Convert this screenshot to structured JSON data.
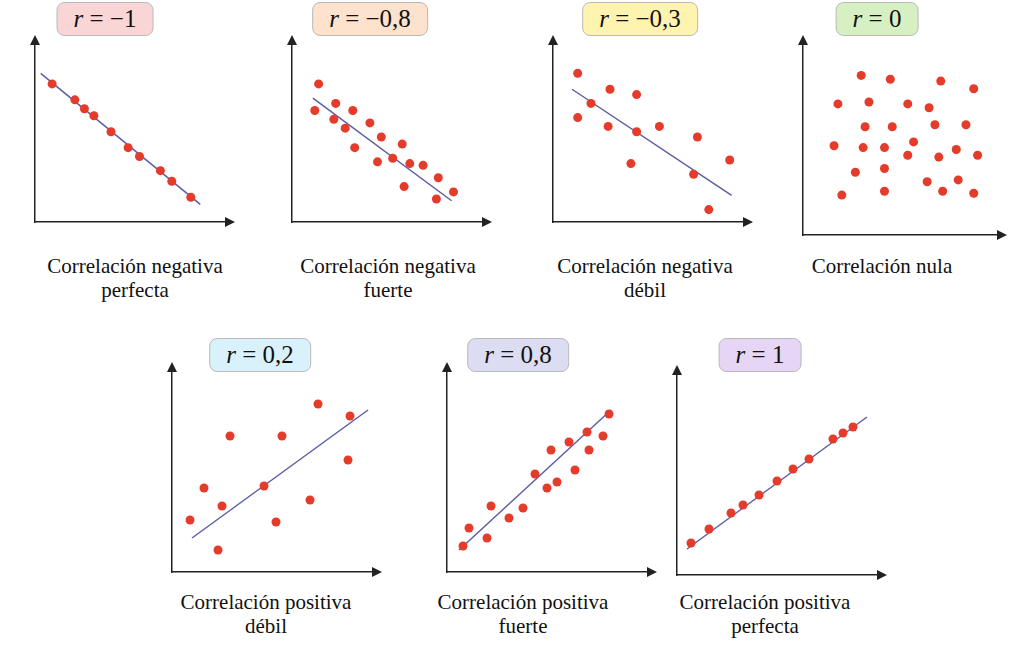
{
  "chart_data": [
    {
      "type": "scatter",
      "title": "r = −1",
      "xlabel": [
        "Correlación negativa",
        "perfecta"
      ],
      "xlim": [
        0,
        10
      ],
      "ylim": [
        0,
        10
      ],
      "tick_labels": false,
      "grid": false,
      "series": [
        {
          "type": "scatter",
          "marker": "circle",
          "color": "#e53b2b",
          "x": [
            0.9,
            2.1,
            2.6,
            3.1,
            4.0,
            4.9,
            5.5,
            6.6,
            7.2,
            8.2
          ],
          "values": [
            7.8,
            6.9,
            6.4,
            6.0,
            5.1,
            4.2,
            3.7,
            2.9,
            2.3,
            1.4
          ]
        },
        {
          "type": "line",
          "line_style": "solid",
          "color": "#5b5ea6",
          "x": [
            0.3,
            8.7
          ],
          "values": [
            8.4,
            1.0
          ]
        }
      ]
    },
    {
      "type": "scatter",
      "title": "r = −0,8",
      "xlabel": [
        "Correlación negativa",
        "fuerte"
      ],
      "xlim": [
        0,
        10
      ],
      "ylim": [
        0,
        10
      ],
      "tick_labels": false,
      "grid": false,
      "series": [
        {
          "type": "scatter",
          "marker": "circle",
          "color": "#e53b2b",
          "x": [
            1.4,
            1.2,
            2.3,
            2.2,
            2.8,
            3.2,
            3.3,
            4.1,
            4.5,
            4.7,
            5.3,
            5.8,
            5.9,
            6.2,
            6.9,
            7.6,
            7.7,
            8.5
          ],
          "values": [
            7.8,
            6.3,
            6.7,
            5.8,
            5.3,
            6.3,
            4.2,
            5.6,
            3.4,
            4.8,
            3.6,
            4.4,
            2.0,
            3.3,
            3.2,
            1.3,
            2.5,
            1.7
          ]
        },
        {
          "type": "line",
          "line_style": "solid",
          "color": "#5b5ea6",
          "x": [
            1.1,
            8.4
          ],
          "values": [
            7.0,
            1.2
          ]
        }
      ]
    },
    {
      "type": "scatter",
      "title": "r = −0,3",
      "xlabel": [
        "Correlación negativa",
        "débil"
      ],
      "xlim": [
        0,
        10
      ],
      "ylim": [
        0,
        10
      ],
      "tick_labels": false,
      "grid": false,
      "series": [
        {
          "type": "scatter",
          "marker": "circle",
          "color": "#e53b2b",
          "x": [
            1.3,
            1.3,
            2.0,
            3.0,
            2.9,
            4.4,
            4.4,
            4.1,
            5.6,
            7.6,
            7.4,
            8.2,
            9.3
          ],
          "values": [
            8.4,
            5.9,
            6.7,
            7.5,
            5.4,
            7.2,
            5.1,
            3.3,
            5.4,
            4.8,
            2.7,
            0.7,
            3.5
          ]
        },
        {
          "type": "line",
          "line_style": "solid",
          "color": "#5b5ea6",
          "x": [
            1.0,
            9.4
          ],
          "values": [
            7.5,
            1.5
          ]
        }
      ]
    },
    {
      "type": "scatter",
      "title": "r = 0",
      "xlabel": [
        "Correlación nula"
      ],
      "xlim": [
        0,
        10
      ],
      "ylim": [
        0,
        10
      ],
      "tick_labels": false,
      "grid": false,
      "series": [
        {
          "type": "scatter",
          "marker": "circle",
          "color": "#e53b2b",
          "x": [
            3.0,
            4.5,
            7.1,
            8.8,
            1.8,
            3.4,
            5.4,
            6.5,
            4.6,
            6.8,
            8.4,
            3.2,
            5.7,
            1.6,
            3.1,
            4.2,
            5.4,
            7.0,
            7.9,
            9.0,
            2.7,
            4.2,
            6.4,
            7.2,
            8.0,
            2.0,
            4.2,
            8.8
          ],
          "values": [
            8.4,
            8.2,
            8.1,
            7.7,
            6.9,
            7.0,
            6.9,
            6.7,
            5.7,
            5.8,
            5.8,
            5.7,
            4.9,
            4.7,
            4.6,
            4.6,
            4.2,
            4.1,
            4.5,
            4.2,
            3.3,
            3.5,
            2.8,
            2.3,
            2.9,
            2.1,
            2.3,
            2.2
          ]
        }
      ]
    },
    {
      "type": "scatter",
      "title": "r = 0,2",
      "xlabel": [
        "Correlación positiva",
        "débil"
      ],
      "xlim": [
        0,
        10
      ],
      "ylim": [
        0,
        10
      ],
      "tick_labels": false,
      "grid": false,
      "series": [
        {
          "type": "scatter",
          "marker": "circle",
          "color": "#e53b2b",
          "x": [
            0.9,
            1.6,
            2.3,
            2.5,
            2.9,
            4.6,
            5.2,
            5.5,
            6.9,
            7.3,
            8.8,
            8.9
          ],
          "values": [
            2.6,
            4.2,
            1.1,
            3.3,
            6.8,
            4.3,
            2.5,
            6.8,
            3.6,
            8.4,
            5.6,
            7.8
          ]
        },
        {
          "type": "line",
          "line_style": "solid",
          "color": "#5b5ea6",
          "x": [
            1.0,
            9.8
          ],
          "values": [
            1.7,
            8.1
          ]
        }
      ]
    },
    {
      "type": "scatter",
      "title": "r = 0,8",
      "xlabel": [
        "Correlación positiva",
        "fuerte"
      ],
      "xlim": [
        0,
        10
      ],
      "ylim": [
        0,
        10
      ],
      "tick_labels": false,
      "grid": false,
      "series": [
        {
          "type": "scatter",
          "marker": "circle",
          "color": "#e53b2b",
          "x": [
            0.8,
            1.1,
            2.0,
            2.2,
            3.1,
            3.8,
            4.4,
            5.0,
            5.2,
            5.5,
            6.1,
            6.4,
            7.0,
            7.1,
            7.8,
            8.1
          ],
          "values": [
            1.3,
            2.2,
            1.7,
            3.3,
            2.7,
            3.2,
            4.9,
            4.2,
            6.1,
            4.5,
            6.5,
            5.1,
            7.0,
            6.1,
            6.8,
            7.9
          ]
        },
        {
          "type": "line",
          "line_style": "solid",
          "color": "#5b5ea6",
          "x": [
            0.6,
            8.2
          ],
          "values": [
            1.1,
            8.1
          ]
        }
      ]
    },
    {
      "type": "scatter",
      "title": "r = 1",
      "xlabel": [
        "Correlación positiva",
        "perfecta"
      ],
      "xlim": [
        0,
        10
      ],
      "ylim": [
        0,
        10
      ],
      "tick_labels": false,
      "grid": false,
      "series": [
        {
          "type": "scatter",
          "marker": "circle",
          "color": "#e53b2b",
          "x": [
            0.7,
            1.6,
            2.7,
            3.3,
            4.1,
            5.0,
            5.8,
            6.6,
            7.8,
            8.3,
            8.8
          ],
          "values": [
            1.6,
            2.3,
            3.1,
            3.5,
            4.0,
            4.7,
            5.3,
            5.8,
            6.8,
            7.1,
            7.4
          ]
        },
        {
          "type": "line",
          "line_style": "solid",
          "color": "#5b5ea6",
          "x": [
            0.5,
            9.5
          ],
          "values": [
            1.3,
            7.9
          ]
        }
      ]
    }
  ]
}
